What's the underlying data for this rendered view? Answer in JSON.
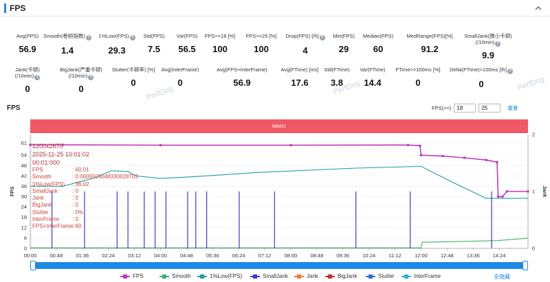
{
  "header": {
    "title": "FPS"
  },
  "stats_row1": [
    {
      "label": "Avg(FPS)",
      "value": "56.9",
      "help": false
    },
    {
      "label": "Smooth(卷帧指数)",
      "value": "1.4",
      "help": true
    },
    {
      "label": "1%Low(FPS)",
      "value": "29.3",
      "help": true
    },
    {
      "label": "Std(FPS)",
      "value": "7.5",
      "help": false
    },
    {
      "label": "Var(FPS)",
      "value": "56.5",
      "help": false
    },
    {
      "label": "FPS>=18 [%]",
      "value": "100",
      "help": false
    },
    {
      "label": "FPS>=25 [%]",
      "value": "100",
      "help": false
    },
    {
      "label": "Drop(FPS) [/h]",
      "value": "4",
      "help": true
    },
    {
      "label": "Min(FPS)",
      "value": "29",
      "help": false
    },
    {
      "label": "Median(FPS)",
      "value": "60",
      "help": false
    },
    {
      "label": "MedRange(FPS)[%]",
      "value": "91.2",
      "help": false
    },
    {
      "label": "SmallJank(微小卡顿)",
      "label2": "(/10min)",
      "value": "9.9",
      "help": true
    }
  ],
  "stats_row2": [
    {
      "label": "Jank(卡顿)",
      "label2": "(/10min)",
      "value": "0",
      "help": true
    },
    {
      "label": "BigJank(严重卡顿)",
      "label2": "(/10min)",
      "value": "0",
      "help": true
    },
    {
      "label": "Stutter(卡顿率) [%]",
      "value": "0",
      "help": false
    },
    {
      "label": "Avg(InterFrame)",
      "value": "0",
      "help": false
    },
    {
      "label": "Avg(FPS+InterFrame)",
      "value": "56.9",
      "help": false
    },
    {
      "label": "Avg(FTime) [ms]",
      "value": "17.6",
      "help": false
    },
    {
      "label": "Std(FTime)",
      "value": "3.8",
      "help": false
    },
    {
      "label": "Var(FTime)",
      "value": "14.4",
      "help": false
    },
    {
      "label": "FTime>=100ms [%]",
      "value": "0",
      "help": false
    },
    {
      "label": "Delta(FTime)>100ms [/h]",
      "value": "0",
      "help": true
    }
  ],
  "section": {
    "title": "FPS",
    "threshold_label": "FPS(>=)",
    "threshold_1": "18",
    "threshold_2": "25",
    "reset_label": "重置",
    "band_label": "label1",
    "watermark": "PerfDog"
  },
  "tooltip": {
    "resolution": "1200x2670",
    "datetime": "2025-11-25 10:01:02",
    "elapsed": "00:01:000",
    "rows": [
      {
        "k": "FPS",
        "v": ": 60.01"
      },
      {
        "k": "Smooth",
        "v": ": 0.0005505048330628703"
      },
      {
        "k": "1%Low(FPS)",
        "v": ": 36.02"
      },
      {
        "k": "SmallJank",
        "v": ": 0"
      },
      {
        "k": "Jank",
        "v": ": 0"
      },
      {
        "k": "BigJank",
        "v": ": 0"
      },
      {
        "k": "Stutter",
        "v": ": 0%"
      },
      {
        "k": "InterFrame",
        "v": ": 0"
      },
      {
        "k": "FPS+InterFrame",
        "v": ": 60"
      }
    ]
  },
  "chart_data": {
    "type": "line",
    "y_axis_left": {
      "label": "FPS",
      "ticks": [
        "0",
        "6",
        "12",
        "18",
        "24",
        "30",
        "36",
        "42",
        "48",
        "54",
        "61"
      ],
      "range": [
        0,
        66
      ]
    },
    "y_axis_right": {
      "label": "Jank",
      "ticks": [
        "0",
        "1",
        "2"
      ],
      "range": [
        0,
        2
      ]
    },
    "x_ticks": [
      "00:00",
      "00:48",
      "01:36",
      "02:24",
      "03:12",
      "04:00",
      "04:48",
      "05:36",
      "06:24",
      "07:12",
      "08:00",
      "08:48",
      "09:36",
      "10:24",
      "11:12",
      "12:00",
      "12:48",
      "13:36",
      "14:24"
    ],
    "x_range_seconds": [
      0,
      917
    ],
    "series": [
      {
        "name": "FPS",
        "color": "#c03cb8",
        "points": [
          [
            0,
            60.0
          ],
          [
            60,
            60.0
          ],
          [
            240,
            59.8
          ],
          [
            480,
            59.8
          ],
          [
            696,
            59.9
          ],
          [
            718,
            59.5
          ],
          [
            720,
            54.0
          ],
          [
            760,
            53.5
          ],
          [
            800,
            52.5
          ],
          [
            840,
            51.2
          ],
          [
            860,
            50.0
          ],
          [
            862,
            30.0
          ],
          [
            870,
            30.0
          ],
          [
            878,
            33.0
          ],
          [
            917,
            33.0
          ]
        ]
      },
      {
        "name": "Smooth",
        "color": "#3cb371",
        "points": [
          [
            0,
            0.3
          ],
          [
            720,
            0.3
          ],
          [
            722,
            3.5
          ],
          [
            860,
            4.5
          ],
          [
            900,
            5.5
          ],
          [
            917,
            6.0
          ]
        ]
      },
      {
        "name": "1%Low(FPS)",
        "color": "#1f9e9a",
        "points": [
          [
            0,
            36.0
          ],
          [
            60,
            36.0
          ],
          [
            120,
            41.0
          ],
          [
            150,
            45.0
          ],
          [
            180,
            44.5
          ],
          [
            195,
            42.0
          ],
          [
            240,
            40.5
          ],
          [
            300,
            41.5
          ],
          [
            420,
            44.0
          ],
          [
            600,
            46.5
          ],
          [
            720,
            47.5
          ],
          [
            780,
            38.0
          ],
          [
            840,
            29.0
          ],
          [
            917,
            29.0
          ]
        ]
      },
      {
        "name": "SmallJank",
        "color": "#3a3ad6",
        "spikes": [
          [
            40,
            1
          ],
          [
            100,
            1
          ],
          [
            160,
            1
          ],
          [
            180,
            1
          ],
          [
            210,
            1
          ],
          [
            230,
            1
          ],
          [
            250,
            1
          ],
          [
            290,
            1
          ],
          [
            305,
            1
          ],
          [
            325,
            1
          ],
          [
            385,
            1
          ],
          [
            450,
            1
          ],
          [
            600,
            1
          ],
          [
            700,
            1
          ],
          [
            850,
            1
          ]
        ]
      },
      {
        "name": "Jank",
        "color": "#f07a30",
        "spikes": []
      },
      {
        "name": "BigJank",
        "color": "#d02b2b",
        "spikes": []
      },
      {
        "name": "Stutter",
        "color": "#2e6fd6",
        "spikes": []
      },
      {
        "name": "InterFrame",
        "color": "#34b0d6",
        "points": []
      }
    ],
    "legend_position": "bottom",
    "grid": true
  },
  "legend": {
    "items": [
      {
        "name": "FPS",
        "color": "#c03cb8"
      },
      {
        "name": "Smooth",
        "color": "#3cb371"
      },
      {
        "name": "1%Low(FPS)",
        "color": "#1f9e9a"
      },
      {
        "name": "SmallJank",
        "color": "#3a3ad6"
      },
      {
        "name": "Jank",
        "color": "#f07a30"
      },
      {
        "name": "BigJank",
        "color": "#d02b2b"
      },
      {
        "name": "Stutter",
        "color": "#2e6fd6"
      },
      {
        "name": "InterFrame",
        "color": "#34b0d6"
      }
    ],
    "toggle_label": "全隐藏"
  }
}
